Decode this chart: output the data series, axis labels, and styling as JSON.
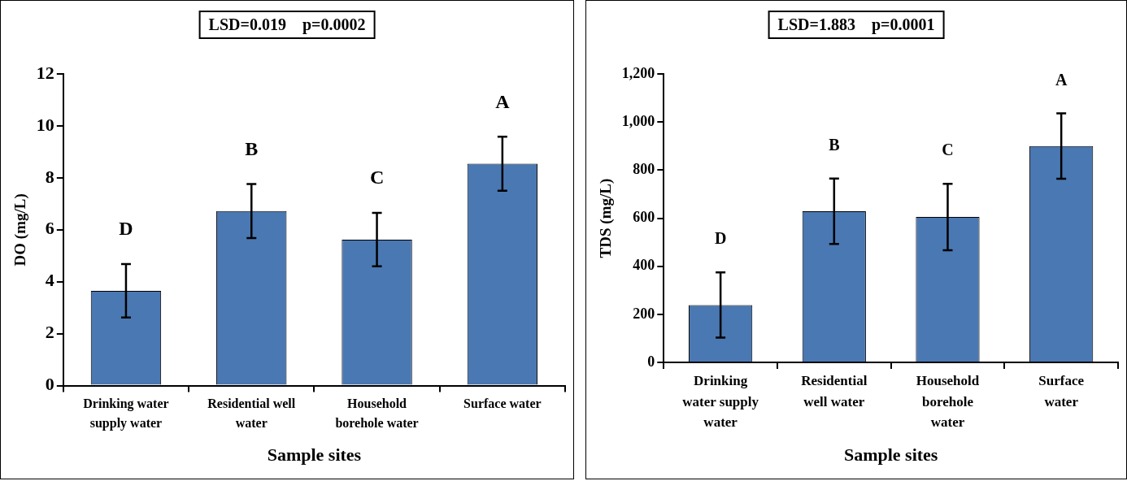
{
  "chart_data": [
    {
      "type": "bar",
      "title": "LSD=0.019    p=0.0002",
      "xlabel": "Sample sites",
      "ylabel": "DO (mg/L)",
      "categories": [
        "Drinking water supply water",
        "Residential well water",
        "Household borehole water",
        "Surface water"
      ],
      "values": [
        3.65,
        6.72,
        5.62,
        8.54
      ],
      "errors": [
        1.03,
        1.04,
        1.03,
        1.04
      ],
      "color": "#4a78b2",
      "ylim": [
        0,
        12
      ],
      "yticks": [
        0,
        2,
        4,
        6,
        8,
        10,
        12
      ],
      "grid": false,
      "annotations": [
        "D",
        "B",
        "C",
        "A"
      ]
    },
    {
      "type": "bar",
      "title": "LSD=1.883    p=0.0001",
      "xlabel": "Sample sites",
      "ylabel": "TDS (mg/L)",
      "categories": [
        "Drinking water supply water",
        "Residential well water",
        "Household borehole water",
        "Surface water"
      ],
      "values": [
        239,
        629,
        605,
        900
      ],
      "errors": [
        136,
        136,
        138,
        136
      ],
      "color": "#4a78b2",
      "ylim": [
        0,
        1200
      ],
      "yticks": [
        0,
        200,
        400,
        600,
        800,
        {
          "value": 1000,
          "label": "1,000"
        },
        {
          "value": 1200,
          "label": "1,200"
        }
      ],
      "grid": false,
      "annotations": [
        "D",
        "B",
        "C",
        "A"
      ]
    }
  ]
}
